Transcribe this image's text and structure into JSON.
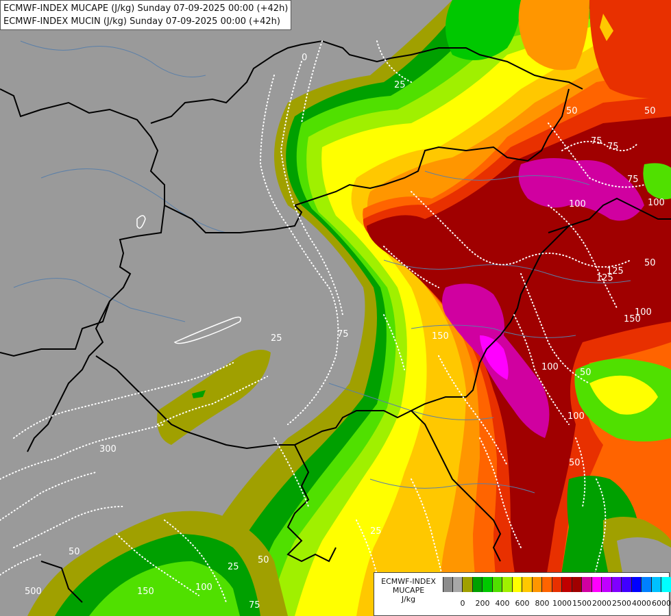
{
  "title": {
    "line1": "ECMWF-INDEX MUCAPE (J/kg) Sunday 07-09-2025 00:00 (+42h)",
    "line2": "ECMWF-INDEX MUCIN (J/kg) Sunday 07-09-2025 00:00 (+42h)"
  },
  "legend": {
    "label_line1": "ECMWF-INDEX",
    "label_line2": "MUCAPE",
    "label_line3": "J/kg",
    "colors": [
      "#8c8c8c",
      "#a8a8a8",
      "#a0a000",
      "#00a000",
      "#00c800",
      "#50e000",
      "#a0f000",
      "#ffff00",
      "#ffc800",
      "#ff9600",
      "#ff6400",
      "#e83000",
      "#c00000",
      "#a00000",
      "#d000a0",
      "#ff00ff",
      "#c000ff",
      "#8000ff",
      "#4000ff",
      "#0000ff",
      "#0080ff",
      "#00c0ff",
      "#00ffff",
      "#80ffff",
      "#ffffff"
    ],
    "tick_labels": [
      "0",
      "200",
      "400",
      "600",
      "800",
      "1000",
      "1500",
      "2000",
      "2500",
      "4000",
      "6000"
    ]
  },
  "contour_labels": [
    "0",
    "25",
    "50",
    "75",
    "100",
    "125",
    "150",
    "300",
    "500",
    "25",
    "50",
    "100",
    "50",
    "75",
    "100",
    "125",
    "150",
    "50",
    "25",
    "75",
    "50",
    "100",
    "50",
    "100",
    "150",
    "100",
    "75",
    "25",
    "50",
    "75"
  ],
  "map_layers": {
    "ocean_color": "#9a9a9a",
    "border_color": "#000000",
    "river_color": "#5a7fa8",
    "cin_contour_color": "#ffffff"
  }
}
